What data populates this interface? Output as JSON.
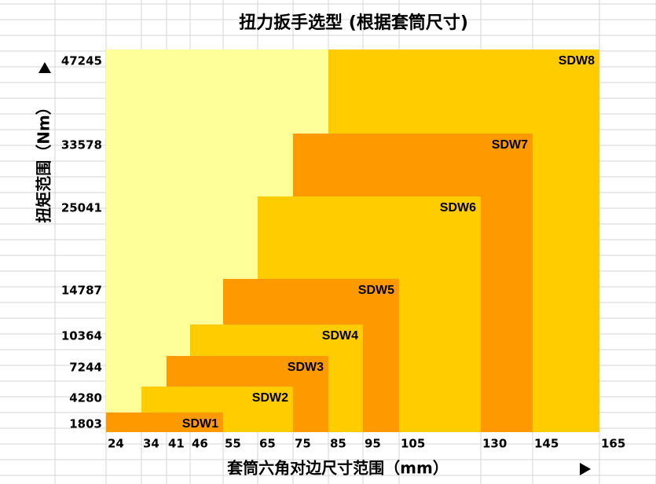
{
  "chart_data": {
    "type": "range-blocks",
    "title": "扭力扳手选型 (根据套筒尺寸)",
    "x_label": "套筒六角对边尺寸范围（mm）",
    "y_label": "扭矩范围（Nm）",
    "xticks": [
      24,
      34,
      41,
      46,
      55,
      65,
      75,
      85,
      95,
      105,
      130,
      145,
      165
    ],
    "yticks": [
      1803,
      4280,
      7244,
      10364,
      14787,
      25041,
      33578,
      47245
    ],
    "background_color": "#ffff99",
    "series": [
      {
        "name": "SDW1",
        "color": "#ff9900",
        "torque": 1803,
        "socket_min": 24,
        "socket_max": 55
      },
      {
        "name": "SDW2",
        "color": "#ffcc00",
        "torque": 4280,
        "socket_min": 34,
        "socket_max": 75
      },
      {
        "name": "SDW3",
        "color": "#ff9900",
        "torque": 7244,
        "socket_min": 41,
        "socket_max": 85
      },
      {
        "name": "SDW4",
        "color": "#ffcc00",
        "torque": 10364,
        "socket_min": 46,
        "socket_max": 95
      },
      {
        "name": "SDW5",
        "color": "#ff9900",
        "torque": 14787,
        "socket_min": 55,
        "socket_max": 105
      },
      {
        "name": "SDW6",
        "color": "#ffcc00",
        "torque": 25041,
        "socket_min": 65,
        "socket_max": 130
      },
      {
        "name": "SDW7",
        "color": "#ff9900",
        "torque": 33578,
        "socket_min": 75,
        "socket_max": 145
      },
      {
        "name": "SDW8",
        "color": "#ffcc00",
        "torque": 47245,
        "socket_min": 85,
        "socket_max": 165
      }
    ]
  }
}
